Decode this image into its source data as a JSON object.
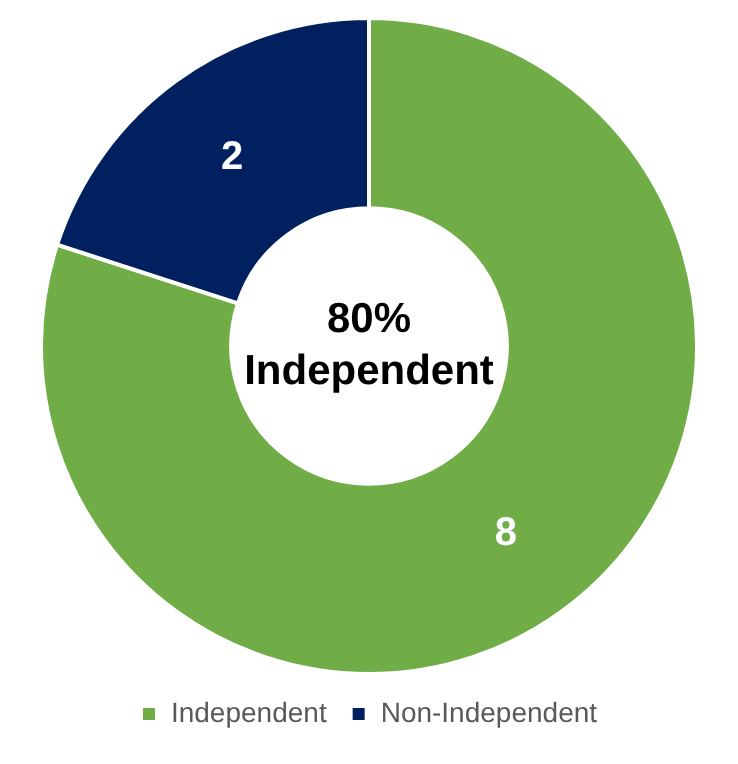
{
  "chart_data": {
    "type": "donut",
    "categories": [
      "Independent",
      "Non-Independent"
    ],
    "values": [
      8,
      2
    ],
    "colors": [
      "#70ad47",
      "#002060"
    ],
    "data_labels": true,
    "legend": "bottom",
    "annotations": [
      "80%\nIndependent"
    ]
  }
}
